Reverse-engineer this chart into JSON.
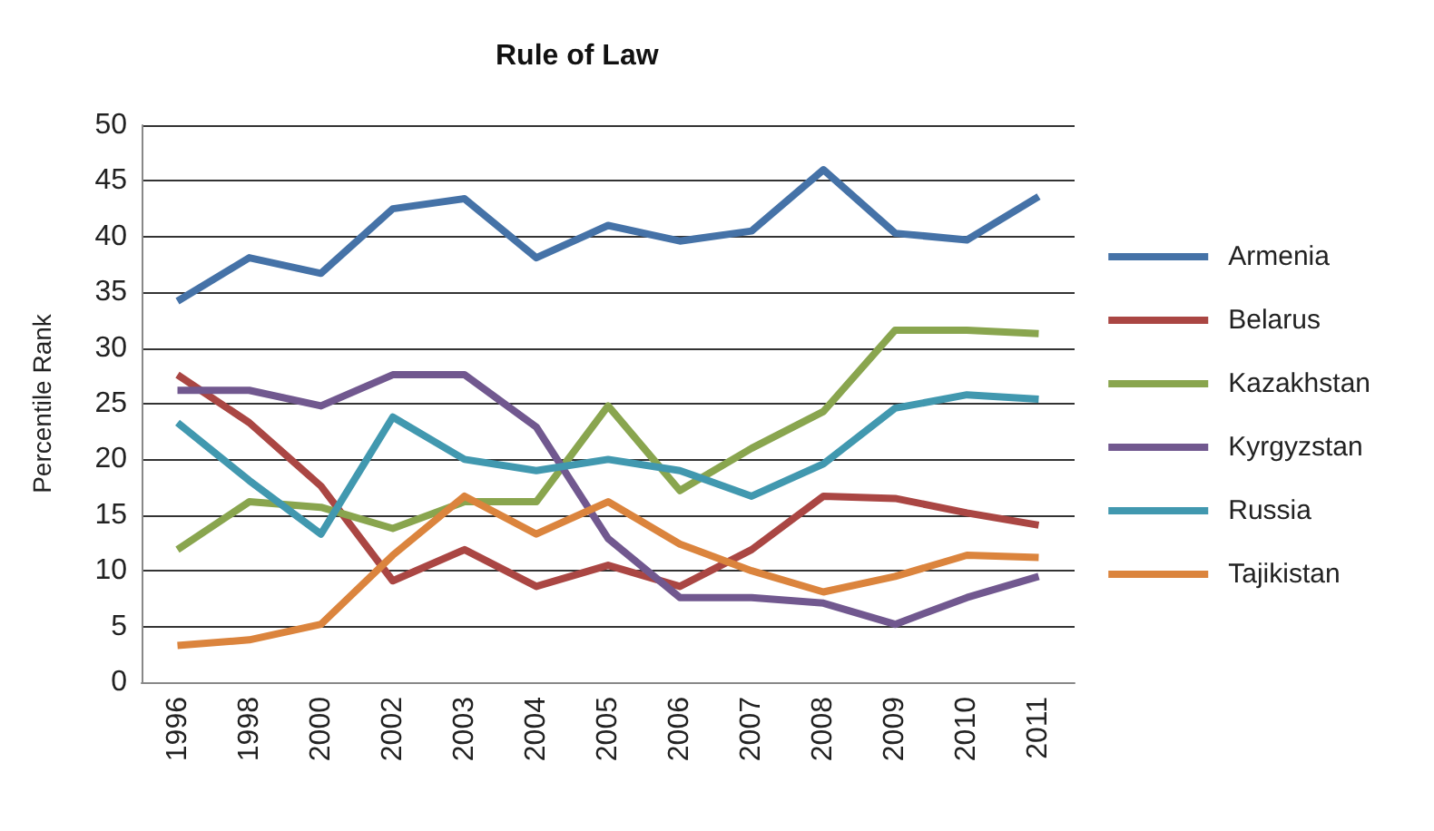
{
  "chart_data": {
    "type": "line",
    "title": "Rule of Law",
    "ylabel": "Percentile Rank",
    "categories": [
      "1996",
      "1998",
      "2000",
      "2002",
      "2003",
      "2004",
      "2005",
      "2006",
      "2007",
      "2008",
      "2009",
      "2010",
      "2011"
    ],
    "ylim": [
      0,
      50
    ],
    "yticks": [
      0,
      5,
      10,
      15,
      20,
      25,
      30,
      35,
      40,
      45,
      50
    ],
    "grid": "y",
    "legend": "right",
    "marker": "none",
    "series": [
      {
        "name": "Armenia",
        "color": "#4572a7",
        "values": [
          34.2,
          38.1,
          36.7,
          42.5,
          43.4,
          38.1,
          41.0,
          39.6,
          40.5,
          46.0,
          40.3,
          39.7,
          43.6
        ]
      },
      {
        "name": "Belarus",
        "color": "#aa4643",
        "values": [
          27.6,
          23.3,
          17.6,
          9.1,
          11.9,
          8.6,
          10.5,
          8.6,
          11.9,
          16.7,
          16.5,
          15.2,
          14.1
        ]
      },
      {
        "name": "Kazakhstan",
        "color": "#89a54e",
        "values": [
          11.9,
          16.2,
          15.7,
          13.8,
          16.2,
          16.2,
          24.8,
          17.2,
          21.0,
          24.3,
          31.6,
          31.6,
          31.3
        ]
      },
      {
        "name": "Kyrgyzstan",
        "color": "#71588f",
        "values": [
          26.2,
          26.2,
          24.8,
          27.6,
          27.6,
          22.9,
          12.9,
          7.6,
          7.6,
          7.1,
          5.2,
          7.6,
          9.5
        ]
      },
      {
        "name": "Russia",
        "color": "#4198af",
        "values": [
          23.3,
          18.1,
          13.3,
          23.8,
          20.0,
          19.0,
          20.0,
          19.0,
          16.7,
          19.6,
          24.6,
          25.8,
          25.4
        ]
      },
      {
        "name": "Tajikistan",
        "color": "#db843d",
        "values": [
          3.3,
          3.8,
          5.2,
          11.4,
          16.7,
          13.3,
          16.2,
          12.4,
          10.0,
          8.1,
          9.5,
          11.4,
          11.2
        ]
      }
    ]
  }
}
